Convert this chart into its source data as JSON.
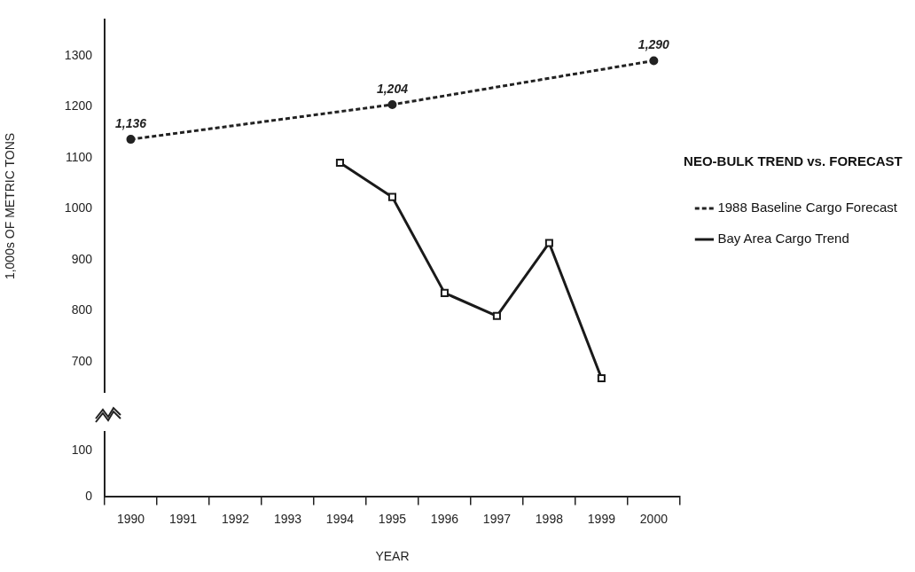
{
  "chart_data": [
    {
      "type": "line",
      "categories": [
        "1990",
        "1991",
        "1992",
        "1993",
        "1994",
        "1995",
        "1996",
        "1997",
        "1998",
        "1999",
        "2000"
      ],
      "ylim": [
        640,
        1370
      ],
      "yticks": [
        700,
        800,
        900,
        1000,
        1100,
        1200,
        1300
      ],
      "ylabel": "1,000s OF METRIC TONS",
      "tick_labels": "y",
      "grid": false,
      "legend": "right",
      "legend_title": "NEO-BULK TREND vs. FORECAST",
      "series": [
        {
          "name": "1988 Baseline Cargo Forecast",
          "color": "#222222",
          "line_style": "dashed",
          "marker": "circle",
          "values": [
            1136,
            null,
            null,
            null,
            null,
            1204,
            null,
            null,
            null,
            null,
            1290
          ],
          "value_labels": [
            "1,136",
            null,
            null,
            null,
            null,
            "1,204",
            null,
            null,
            null,
            null,
            "1,290"
          ]
        },
        {
          "name": "Bay Area Cargo Trend",
          "color": "#1a1a1a",
          "line_style": "solid",
          "marker": "square",
          "values": [
            null,
            null,
            null,
            null,
            1090,
            1023,
            835,
            790,
            933,
            668,
            null
          ]
        }
      ]
    },
    {
      "type": "line",
      "categories": [
        "1990",
        "1991",
        "1992",
        "1993",
        "1994",
        "1995",
        "1996",
        "1997",
        "1998",
        "1999",
        "2000"
      ],
      "ylim": [
        0,
        140
      ],
      "yticks": [
        0,
        100
      ],
      "xlabel": "YEAR",
      "grid": false
    }
  ]
}
